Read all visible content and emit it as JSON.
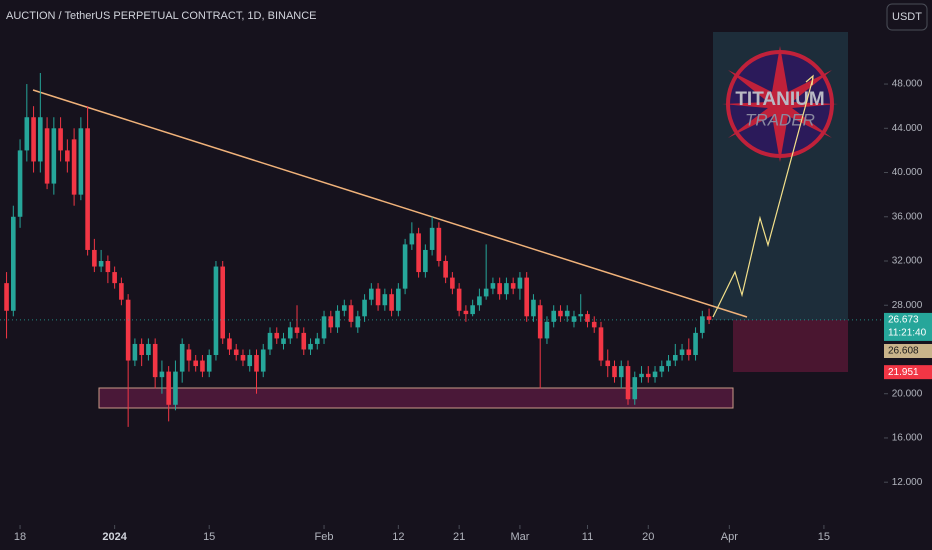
{
  "chart_data": {
    "type": "candlestick",
    "title": "AUCTION / TetherUS PERPETUAL CONTRACT, 1D, BINANCE",
    "currency": "USDT",
    "x": [
      -2,
      -1,
      0,
      1,
      2,
      3,
      4,
      5,
      6,
      7,
      8,
      9,
      10,
      11,
      12,
      13,
      14,
      15,
      16,
      17,
      18,
      19,
      20,
      21,
      22,
      23,
      24,
      25,
      26,
      27,
      28,
      29,
      30,
      31,
      32,
      33,
      34,
      35,
      36,
      37,
      38,
      39,
      40,
      41,
      42,
      43,
      44,
      45,
      46,
      47,
      48,
      49,
      50,
      51,
      52,
      53,
      54,
      55,
      56,
      57,
      58,
      59,
      60,
      61,
      62,
      63,
      64,
      65,
      66,
      67,
      68,
      69,
      70,
      71,
      72,
      73,
      74,
      75,
      76,
      77,
      78,
      79,
      80,
      81,
      82,
      83,
      84,
      85,
      86,
      87,
      88,
      89,
      90,
      91,
      92,
      93,
      94,
      95,
      96,
      97,
      98,
      99,
      100,
      101,
      102
    ],
    "open": [
      30,
      27.5,
      36,
      42,
      45,
      41,
      44,
      39,
      44,
      42,
      43,
      38,
      44,
      33,
      31.5,
      32,
      31,
      30,
      28.5,
      23,
      24.5,
      23.5,
      24.5,
      21.5,
      22,
      19,
      22,
      24,
      23,
      23,
      22,
      23.5,
      31.5,
      25,
      24,
      23.5,
      22.5,
      23.5,
      22,
      24,
      25.5,
      24.5,
      25,
      26,
      25.5,
      24,
      24.5,
      25,
      27,
      26,
      27.5,
      28,
      26,
      27,
      28.5,
      29.5,
      28,
      29,
      27.5,
      29.5,
      33.5,
      34.5,
      31,
      33,
      35,
      32,
      30.5,
      29.5,
      27.5,
      27.2,
      28,
      28.8,
      29.5,
      30,
      29,
      30,
      29.5,
      30.5,
      27,
      28,
      25,
      26.5,
      27.5,
      27,
      26.5,
      27,
      27.2,
      26.5,
      26,
      23,
      22.5,
      21.5,
      22.5,
      19.5,
      21.5,
      21.8,
      21.5,
      22,
      22.5,
      23,
      23.5,
      24,
      23.5,
      25.5,
      27
    ],
    "high": [
      31,
      37,
      43,
      48,
      46,
      49,
      45,
      45,
      45,
      43,
      44,
      45,
      46,
      34,
      33,
      32.5,
      31.5,
      30.5,
      29,
      25,
      25,
      25,
      25,
      23,
      22.5,
      23,
      25,
      24.5,
      23.5,
      23.5,
      24,
      32,
      32,
      25.5,
      24.5,
      24,
      24,
      24,
      24.5,
      26,
      26,
      25.5,
      26.5,
      28,
      26,
      25,
      25.5,
      27.5,
      27.5,
      28,
      28.5,
      28.5,
      27.5,
      29,
      30,
      30,
      29.5,
      29.5,
      30,
      34,
      35.5,
      35,
      33.5,
      36,
      35.5,
      32.5,
      31,
      30,
      28,
      28.5,
      29.5,
      33.5,
      30.5,
      30.5,
      30.5,
      30.5,
      31,
      31,
      29,
      28.5,
      27,
      28,
      28,
      28,
      27.5,
      29,
      27.5,
      27,
      26.5,
      24,
      23,
      23,
      23,
      22,
      22.5,
      22.5,
      22.5,
      23,
      23.5,
      24.5,
      24.5,
      25,
      26,
      27.5,
      27.7
    ],
    "low": [
      25,
      27,
      35,
      41,
      40,
      40,
      38.5,
      38,
      41,
      40,
      37,
      37.5,
      32.5,
      31,
      31,
      30,
      29.5,
      28,
      17,
      22.5,
      22.5,
      23,
      20.5,
      20,
      17.5,
      18.5,
      21,
      22,
      22,
      21.5,
      21.5,
      23,
      24.5,
      23.5,
      23,
      22.5,
      22,
      20,
      21.5,
      23.5,
      24.5,
      24,
      24.5,
      25,
      23.5,
      23.5,
      24,
      24.5,
      25.5,
      25.5,
      27,
      26,
      25.5,
      26.5,
      28,
      27.5,
      27.5,
      27,
      27,
      29,
      33,
      30.5,
      30.5,
      32.5,
      31.5,
      30,
      29,
      27,
      26.5,
      27,
      27.5,
      28.5,
      29,
      28.5,
      28.5,
      29,
      28.5,
      26.5,
      26.5,
      20.5,
      24.5,
      26,
      26.5,
      26.5,
      26,
      26.5,
      26,
      25.5,
      22.5,
      21.5,
      21,
      20.5,
      19,
      19,
      21,
      21,
      21,
      21.5,
      22,
      22.5,
      23,
      23,
      23,
      25,
      26.3
    ],
    "close": [
      27.5,
      36,
      42,
      45,
      41,
      45,
      39,
      44,
      42,
      41,
      38,
      44,
      33,
      31.5,
      32,
      31,
      30,
      28.5,
      23,
      24.5,
      23.5,
      24.5,
      21.5,
      22,
      19,
      22,
      24.5,
      23,
      22.5,
      22,
      23.5,
      31.5,
      25,
      24,
      23.5,
      23,
      23.5,
      22,
      24,
      25.5,
      25,
      25,
      26,
      25.5,
      24,
      24.5,
      25,
      27,
      26,
      27.5,
      28,
      26.5,
      27,
      28.5,
      29.5,
      28,
      29,
      27.5,
      29.5,
      33.5,
      34.5,
      31,
      33,
      35,
      32,
      30.5,
      29.5,
      27.5,
      27.2,
      28,
      28.8,
      29.5,
      30,
      29,
      30,
      29.5,
      30.5,
      27,
      28.5,
      25,
      26.5,
      27.5,
      27,
      27.5,
      27,
      27.2,
      26.5,
      26,
      23,
      22.5,
      21.5,
      22.5,
      19.5,
      21.5,
      21.8,
      21.5,
      22,
      22.5,
      23,
      23.5,
      24,
      23.5,
      25.5,
      27,
      26.673
    ],
    "up_color": "#26a69a",
    "down_color": "#f23645",
    "xlim": [
      -2.97,
      127.6
    ],
    "xticks": [
      {
        "value": 0,
        "label": "18"
      },
      {
        "value": 14,
        "label": "2024"
      },
      {
        "value": 28,
        "label": "15"
      },
      {
        "value": 45,
        "label": "Feb"
      },
      {
        "value": 56,
        "label": "12"
      },
      {
        "value": 65,
        "label": "21"
      },
      {
        "value": 74,
        "label": "Mar"
      },
      {
        "value": 84,
        "label": "11"
      },
      {
        "value": 93,
        "label": "20"
      },
      {
        "value": 105,
        "label": "Apr"
      },
      {
        "value": 119,
        "label": "15"
      }
    ],
    "ylim": [
      8.13,
      55.6
    ],
    "yticks": [
      {
        "value": 12,
        "label": "12.000"
      },
      {
        "value": 16,
        "label": "16.000"
      },
      {
        "value": 20,
        "label": "20.000"
      },
      {
        "value": 24,
        "label": "24.000"
      },
      {
        "value": 28,
        "label": "28.000"
      },
      {
        "value": 32,
        "label": "32.000"
      },
      {
        "value": 36,
        "label": "36.000"
      },
      {
        "value": 40,
        "label": "40.000"
      },
      {
        "value": 44,
        "label": "44.000"
      },
      {
        "value": 48,
        "label": "48.000"
      }
    ],
    "last_price": 26.673,
    "countdown": "11:21:40",
    "marked_price": 26.608,
    "low_price": 21.951,
    "logo": {
      "line1": "TITANIUM",
      "line2": "TRADER"
    }
  }
}
